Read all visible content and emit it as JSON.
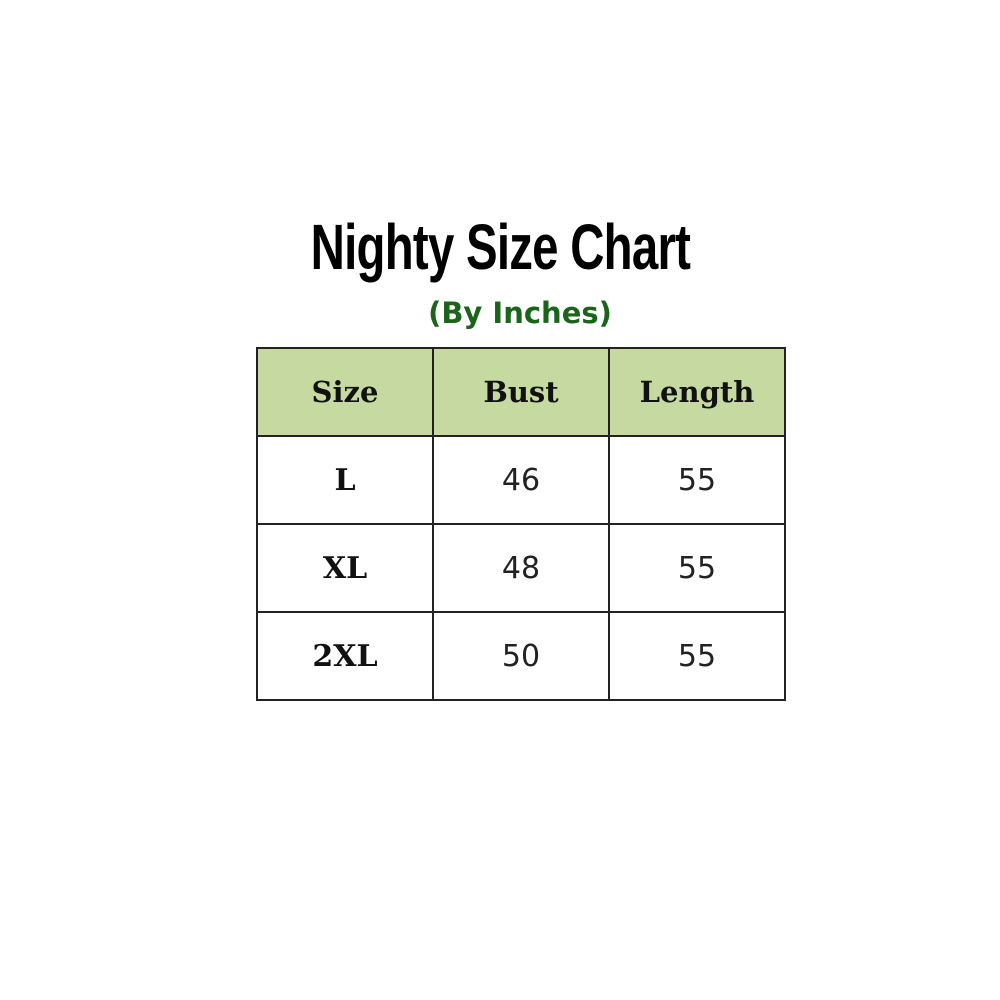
{
  "title": "Nighty Size Chart",
  "subtitle": "(By Inches)",
  "colors": {
    "header_bg": "#c5d9a0",
    "subtitle": "#1b651b"
  },
  "table": {
    "headers": [
      "Size",
      "Bust",
      "Length"
    ],
    "rows": [
      [
        "L",
        "46",
        "55"
      ],
      [
        "XL",
        "48",
        "55"
      ],
      [
        "2XL",
        "50",
        "55"
      ]
    ]
  }
}
